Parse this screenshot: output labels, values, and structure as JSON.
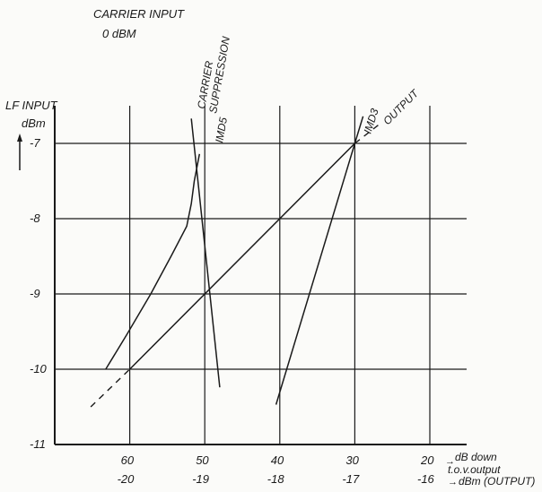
{
  "chart_data": {
    "type": "line",
    "header": [
      "CARRIER INPUT",
      "0 dBM"
    ],
    "ylabel": [
      "LF INPUT",
      "dBm"
    ],
    "xlabel_primary": "dB down",
    "xlabel_primary_2": "t.o.v.output",
    "xlabel_secondary": "dBm (OUTPUT)",
    "arrow_glyph": "→",
    "x_ticks_primary": [
      "60",
      "50",
      "40",
      "30",
      "20"
    ],
    "x_ticks_secondary": [
      "-20",
      "-19",
      "-18",
      "-17",
      "-16"
    ],
    "x_tick_values": [
      60,
      50,
      40,
      30,
      20
    ],
    "y_ticks": [
      "-7",
      "-8",
      "-9",
      "-10",
      "-11"
    ],
    "y_tick_values": [
      -7,
      -8,
      -9,
      -10,
      -11
    ],
    "xlim": [
      70,
      20
    ],
    "ylim": [
      -11,
      -7
    ],
    "grid": true,
    "line_color": "#1a1a1a",
    "series": [
      {
        "name": "OUTPUT",
        "points": [
          [
            60,
            -10
          ],
          [
            30,
            -7
          ]
        ],
        "dashed_extension": [
          [
            65.2,
            -10.5
          ],
          [
            60,
            -10
          ],
          [
            30,
            -7
          ],
          [
            26.4,
            -6.72
          ]
        ]
      },
      {
        "name": "IMD3",
        "points": [
          [
            40.5,
            -10.47
          ],
          [
            30,
            -7
          ],
          [
            28.9,
            -6.64
          ]
        ]
      },
      {
        "name": "IMD5",
        "points": [
          [
            63.2,
            -10
          ],
          [
            60.4,
            -9.54
          ],
          [
            57.2,
            -9
          ],
          [
            54.5,
            -8.5
          ],
          [
            52.4,
            -8.1
          ],
          [
            51.8,
            -7.8
          ],
          [
            51.4,
            -7.5
          ],
          [
            50.7,
            -7.14
          ]
        ]
      },
      {
        "name": "CARRIER SUPPRESSION",
        "name_lines": [
          "CARRIER",
          "SUPPRESSION"
        ],
        "points": [
          [
            51.8,
            -6.67
          ],
          [
            48.0,
            -10.24
          ]
        ]
      }
    ]
  }
}
